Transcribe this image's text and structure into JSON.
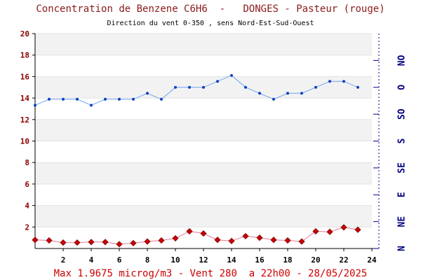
{
  "title": "Concentration de Benzene C6H6  -   DONGES - Pasteur (rouge)",
  "subtitle": "Direction du vent 0-350 , sens Nord-Est-Sud-Ouest",
  "footer": "Max 1.9675 microg/m3 - Vent 280  a 22h00 - 28/05/2025",
  "colors": {
    "benzene_series": "#cc0000",
    "wind_series": "#1f6fe0",
    "left_axis_text": "#8b0000",
    "right_axis_text": "#000080",
    "band": "#f2f2f2"
  },
  "chart_data": {
    "type": "line",
    "x_ticks": [
      2,
      4,
      6,
      8,
      10,
      12,
      14,
      16,
      18,
      20,
      22,
      24
    ],
    "xlim": [
      0,
      24
    ],
    "y_ticks": [
      2,
      4,
      6,
      8,
      10,
      12,
      14,
      16,
      18,
      20
    ],
    "ylim": [
      0,
      20
    ],
    "right_axis": {
      "labels": [
        "N",
        "NE",
        "E",
        "SE",
        "S",
        "SO",
        "O",
        "NO"
      ],
      "ylim": [
        0,
        360
      ]
    },
    "grid": "alternating horizontal bands",
    "series": [
      {
        "axis": "left",
        "marker": "diamond",
        "x": [
          0,
          1,
          2,
          3,
          4,
          5,
          6,
          7,
          8,
          9,
          10,
          11,
          12,
          13,
          14,
          15,
          16,
          17,
          18,
          19,
          20,
          21,
          22,
          23
        ],
        "values": [
          0.8,
          0.75,
          0.55,
          0.55,
          0.6,
          0.6,
          0.4,
          0.5,
          0.65,
          0.75,
          0.95,
          1.6,
          1.4,
          0.8,
          0.7,
          1.15,
          1.0,
          0.8,
          0.75,
          0.65,
          1.6,
          1.55,
          1.9675,
          1.75
        ]
      },
      {
        "axis": "right",
        "marker": "dot",
        "x": [
          0,
          1,
          2,
          3,
          4,
          5,
          6,
          7,
          8,
          9,
          10,
          11,
          12,
          13,
          14,
          15,
          16,
          17,
          18,
          19,
          20,
          21,
          22,
          23
        ],
        "values": [
          240,
          250,
          250,
          250,
          240,
          250,
          250,
          250,
          260,
          250,
          270,
          270,
          270,
          280,
          290,
          270,
          260,
          250,
          260,
          260,
          270,
          280,
          280,
          270
        ]
      }
    ]
  }
}
